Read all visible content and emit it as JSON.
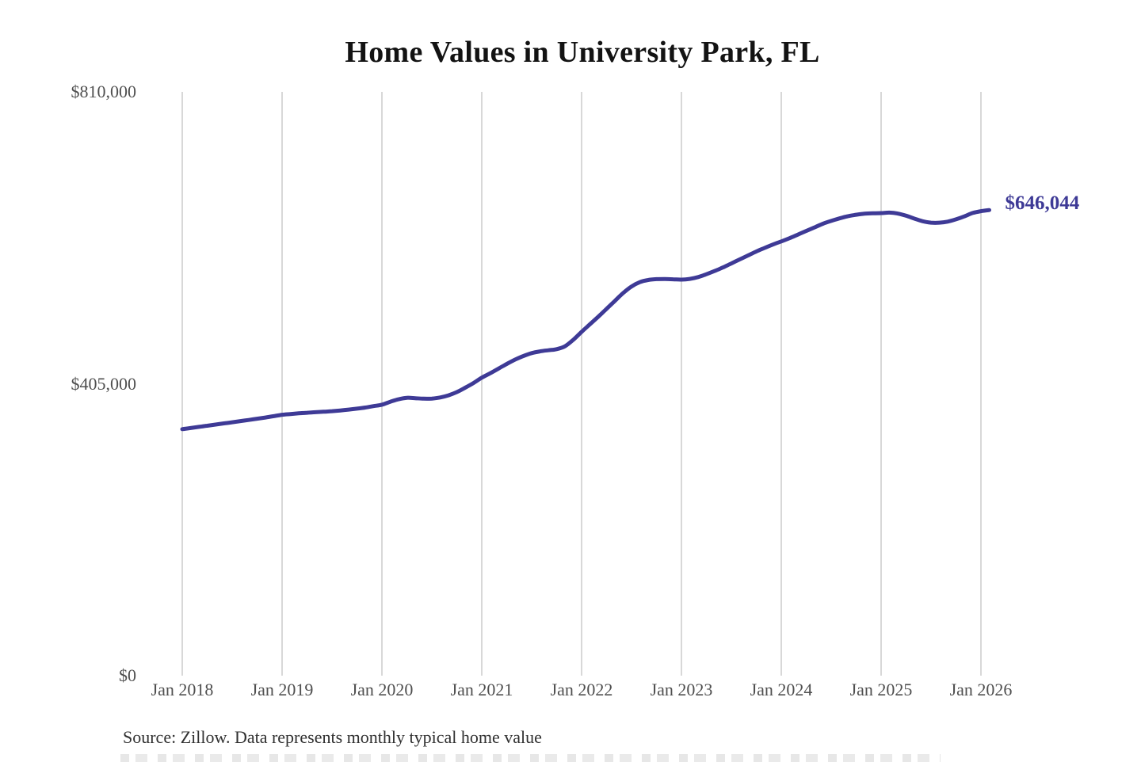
{
  "title": "Home Values in University Park, FL",
  "source_note": "Source: Zillow. Data represents monthly typical home value",
  "end_label": "$646,044",
  "colors": {
    "line": "#3e3a96",
    "grid": "#cbcbcb",
    "tick_text": "#4f4f4f",
    "title_text": "#131313",
    "source_text": "#303030",
    "end_label_text": "#3e3a96",
    "background": "#ffffff"
  },
  "chart_data": {
    "type": "line",
    "title": "Home Values in University Park, FL",
    "xlabel": "",
    "ylabel": "",
    "ylim": [
      0,
      810000
    ],
    "grid": "vertical-only",
    "legend": "none",
    "unit": "USD",
    "interval": "monthly",
    "start_month": "Jan 2018",
    "x_ticks": [
      "Jan 2018",
      "Jan 2019",
      "Jan 2020",
      "Jan 2021",
      "Jan 2022",
      "Jan 2023",
      "Jan 2024",
      "Jan 2025",
      "Jan 2026"
    ],
    "y_ticks": [
      {
        "label": "$810,000",
        "value": 810000
      },
      {
        "label": "$405,000",
        "value": 405000
      },
      {
        "label": "$0",
        "value": 0
      }
    ],
    "end_value": 646044,
    "series": [
      {
        "name": "Monthly typical home value",
        "values": [
          342000,
          343600,
          345200,
          346800,
          348400,
          350000,
          351600,
          353200,
          354800,
          356500,
          358200,
          360000,
          362000,
          363000,
          364000,
          364800,
          365500,
          366200,
          367000,
          368000,
          369200,
          370500,
          372000,
          374000,
          376000,
          380000,
          383500,
          385500,
          385000,
          384300,
          384500,
          386000,
          389000,
          393500,
          399500,
          406000,
          413500,
          419500,
          426000,
          432500,
          438500,
          443500,
          447500,
          450000,
          451500,
          453000,
          457000,
          466000,
          477000,
          487500,
          498000,
          509000,
          520000,
          531000,
          540000,
          546000,
          549000,
          550200,
          550400,
          550000,
          549500,
          550500,
          553000,
          557000,
          561500,
          566500,
          572000,
          577500,
          583000,
          588500,
          593500,
          598200,
          602500,
          607000,
          612000,
          617000,
          622000,
          627000,
          631000,
          634500,
          637500,
          639500,
          641000,
          641500,
          641800,
          642500,
          641200,
          638200,
          634200,
          630500,
          628600,
          628500,
          630000,
          633200,
          637200,
          642000,
          644500,
          646044
        ]
      }
    ]
  }
}
